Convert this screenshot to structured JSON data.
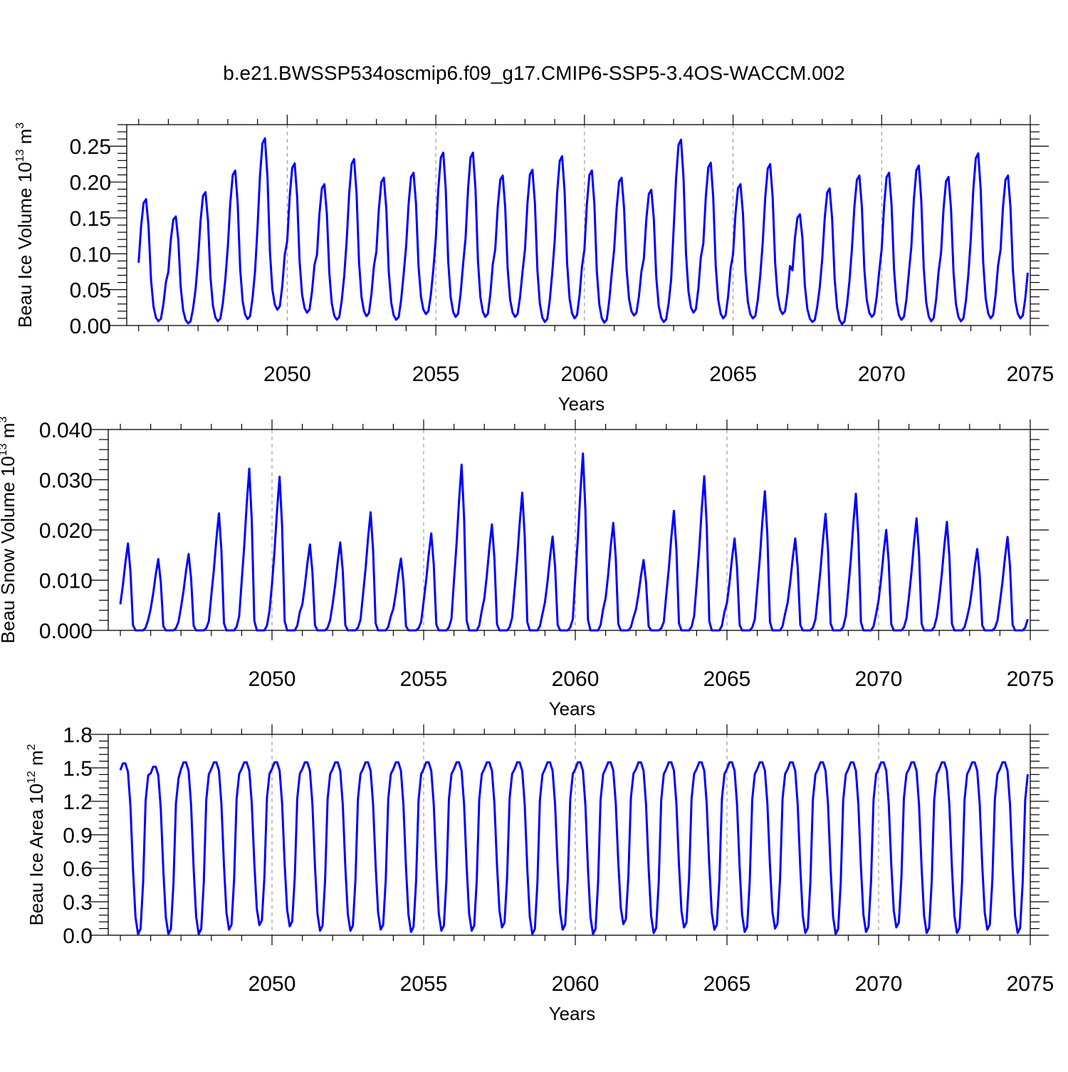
{
  "title": "b.e21.BWSSP534oscmip6.f09_g17.CMIP6-SSP5-3.4OS-WACCM.002",
  "colors": {
    "line": "#0000ff",
    "axis": "#000000",
    "refline": "#888888"
  },
  "chart_data": [
    {
      "type": "line",
      "title": "b.e21.BWSSP534oscmip6.f09_g17.CMIP6-SSP5-3.4OS-WACCM.002",
      "ylabel_main": "Beau Ice Volume 10",
      "ylabel_exp": "13",
      "ylabel_unit": "m",
      "ylabel_unit_exp": "3",
      "xlabel": "Years",
      "xlim": [
        2044.6,
        2075.0
      ],
      "ylim": [
        0,
        0.28
      ],
      "yticks": [
        0.0,
        0.05,
        0.1,
        0.15,
        0.2,
        0.25
      ],
      "yticklabels": [
        "0.00",
        "0.05",
        "0.10",
        "0.15",
        "0.20",
        "0.25"
      ],
      "xticks": [
        2050,
        2055,
        2060,
        2065,
        2070,
        2075
      ],
      "xticklabels": [
        "2050",
        "2055",
        "2060",
        "2065",
        "2070",
        "2075"
      ],
      "start_year": 2045.0,
      "cycle_peaks": [
        0.176,
        0.152,
        0.186,
        0.216,
        0.261,
        0.226,
        0.197,
        0.232,
        0.206,
        0.213,
        0.241,
        0.241,
        0.209,
        0.217,
        0.236,
        0.216,
        0.206,
        0.189,
        0.259,
        0.227,
        0.197,
        0.225,
        0.155,
        0.191,
        0.209,
        0.213,
        0.223,
        0.207,
        0.24,
        0.209
      ],
      "cycle_mins": [
        0.006,
        0.003,
        0.006,
        0.009,
        0.022,
        0.018,
        0.008,
        0.013,
        0.008,
        0.016,
        0.012,
        0.012,
        0.012,
        0.005,
        0.01,
        0.004,
        0.014,
        0.005,
        0.018,
        0.01,
        0.01,
        0.016,
        0.005,
        0.002,
        0.012,
        0.008,
        0.006,
        0.006,
        0.01,
        0.01
      ],
      "profile": "ice"
    },
    {
      "type": "line",
      "ylabel_main": "Beau Snow Volume 10",
      "ylabel_exp": "13",
      "ylabel_unit": "m",
      "ylabel_unit_exp": "3",
      "xlabel": "Years",
      "xlim": [
        2044.6,
        2075.0
      ],
      "ylim": [
        0,
        0.04
      ],
      "yticks": [
        0.0,
        0.01,
        0.02,
        0.03,
        0.04
      ],
      "yticklabels": [
        "0.000",
        "0.010",
        "0.020",
        "0.030",
        "0.040"
      ],
      "xticks": [
        2050,
        2055,
        2060,
        2065,
        2070,
        2075
      ],
      "xticklabels": [
        "2050",
        "2055",
        "2060",
        "2065",
        "2070",
        "2075"
      ],
      "start_year": 2045.0,
      "cycle_peaks": [
        0.0173,
        0.0142,
        0.0152,
        0.0233,
        0.0322,
        0.0306,
        0.0171,
        0.0175,
        0.0235,
        0.0143,
        0.0193,
        0.033,
        0.0211,
        0.0274,
        0.0187,
        0.0352,
        0.0214,
        0.014,
        0.0238,
        0.0307,
        0.0183,
        0.0277,
        0.0183,
        0.0232,
        0.0272,
        0.02,
        0.0223,
        0.0216,
        0.0162,
        0.0186
      ],
      "cycle_mins": [
        0.0,
        0.0,
        0.0,
        0.0,
        0.0,
        0.0,
        0.0,
        0.0,
        0.0,
        0.0,
        0.0,
        0.0,
        0.0,
        0.0,
        0.0,
        0.0,
        0.0,
        0.0,
        0.0,
        0.0,
        0.0,
        0.0,
        0.0,
        0.0,
        0.0,
        0.0,
        0.0,
        0.0,
        0.0,
        0.0
      ],
      "profile": "snow"
    },
    {
      "type": "line",
      "ylabel_main": "Beau Ice Area 10",
      "ylabel_exp": "12",
      "ylabel_unit": "m",
      "ylabel_unit_exp": "2",
      "xlabel": "Years",
      "xlim": [
        2044.6,
        2075.0
      ],
      "ylim": [
        0,
        1.8
      ],
      "yticks": [
        0.0,
        0.3,
        0.6,
        0.9,
        1.2,
        1.5,
        1.8
      ],
      "yticklabels": [
        "0.0",
        "0.3",
        "0.6",
        "0.9",
        "1.2",
        "1.5",
        "1.8"
      ],
      "xticks": [
        2050,
        2055,
        2060,
        2065,
        2070,
        2075
      ],
      "xticklabels": [
        "2050",
        "2055",
        "2060",
        "2065",
        "2070",
        "2075"
      ],
      "start_year": 2045.0,
      "cycle_peaks": [
        1.54,
        1.51,
        1.55,
        1.55,
        1.55,
        1.55,
        1.55,
        1.55,
        1.55,
        1.55,
        1.55,
        1.55,
        1.55,
        1.55,
        1.55,
        1.55,
        1.55,
        1.55,
        1.55,
        1.55,
        1.55,
        1.55,
        1.55,
        1.55,
        1.55,
        1.55,
        1.55,
        1.55,
        1.55,
        1.55
      ],
      "cycle_mins": [
        0.01,
        0.01,
        0.01,
        0.05,
        0.09,
        0.08,
        0.04,
        0.04,
        0.05,
        0.03,
        0.04,
        0.04,
        0.07,
        0.01,
        0.05,
        0.01,
        0.1,
        0.02,
        0.07,
        0.05,
        0.03,
        0.06,
        0.02,
        0.01,
        0.03,
        0.07,
        0.02,
        0.02,
        0.05,
        0.02
      ],
      "profile": "area"
    }
  ]
}
